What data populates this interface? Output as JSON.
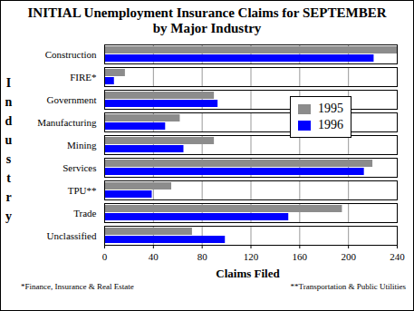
{
  "chart_data": {
    "type": "bar",
    "orientation": "horizontal",
    "title": "INITIAL Unemployment Insurance Claims for SEPTEMBER",
    "subtitle": "by Major Industry",
    "x_label": "Claims Filed",
    "y_label": "Industry",
    "categories": [
      "Construction",
      "FIRE*",
      "Government",
      "Manufacturing",
      "Mining",
      "Services",
      "TPU**",
      "Trade",
      "Unclassified"
    ],
    "series": [
      {
        "name": "1995",
        "color": "#8c8c8c",
        "values": [
          240,
          17,
          90,
          62,
          90,
          220,
          55,
          195,
          72
        ]
      },
      {
        "name": "1996",
        "color": "#0000ff",
        "values": [
          221,
          8,
          93,
          50,
          65,
          213,
          39,
          151,
          99
        ]
      }
    ],
    "xlim": [
      0,
      240
    ],
    "xticks": [
      0,
      40,
      80,
      120,
      160,
      200,
      240
    ],
    "grid": true,
    "legend": "right",
    "annotations": [
      "*Finance, Insurance & Real Estate",
      "**Transportation & Public Utilities"
    ]
  }
}
